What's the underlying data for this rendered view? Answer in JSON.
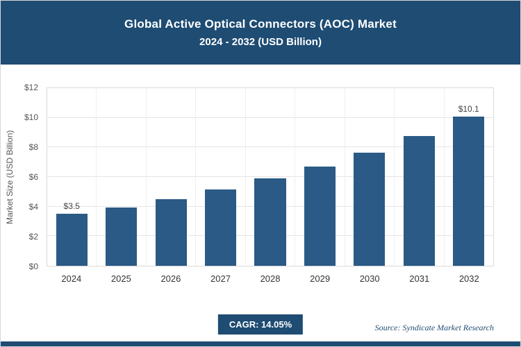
{
  "header": {
    "title_line1": "Global Active Optical Connectors (AOC) Market",
    "title_line2": "2024 - 2032 (USD Billion)"
  },
  "chart_data": {
    "type": "bar",
    "title": "Global Active Optical Connectors (AOC) Market 2024 - 2032 (USD Billion)",
    "categories": [
      "2024",
      "2025",
      "2026",
      "2027",
      "2028",
      "2029",
      "2030",
      "2031",
      "2032"
    ],
    "values": [
      3.5,
      3.95,
      4.5,
      5.15,
      5.9,
      6.7,
      7.65,
      8.75,
      10.1
    ],
    "bar_labels": [
      "$3.5",
      "",
      "",
      "",
      "",
      "",
      "",
      "",
      "$10.1"
    ],
    "xlabel": "",
    "ylabel": "Market Size (USD Billion)",
    "ylim": [
      0,
      12
    ],
    "ytick_labels": [
      "$0",
      "$2",
      "$4",
      "$6",
      "$8",
      "$10",
      "$12"
    ],
    "grid": true,
    "legend": false
  },
  "footer": {
    "cagr_label": "CAGR: 14.05%",
    "source": "Source: Syndicate Market Research"
  },
  "colors": {
    "header_bg": "#1e4c73",
    "bar": "#2a5a85",
    "accent_text": "#1e4c73"
  }
}
